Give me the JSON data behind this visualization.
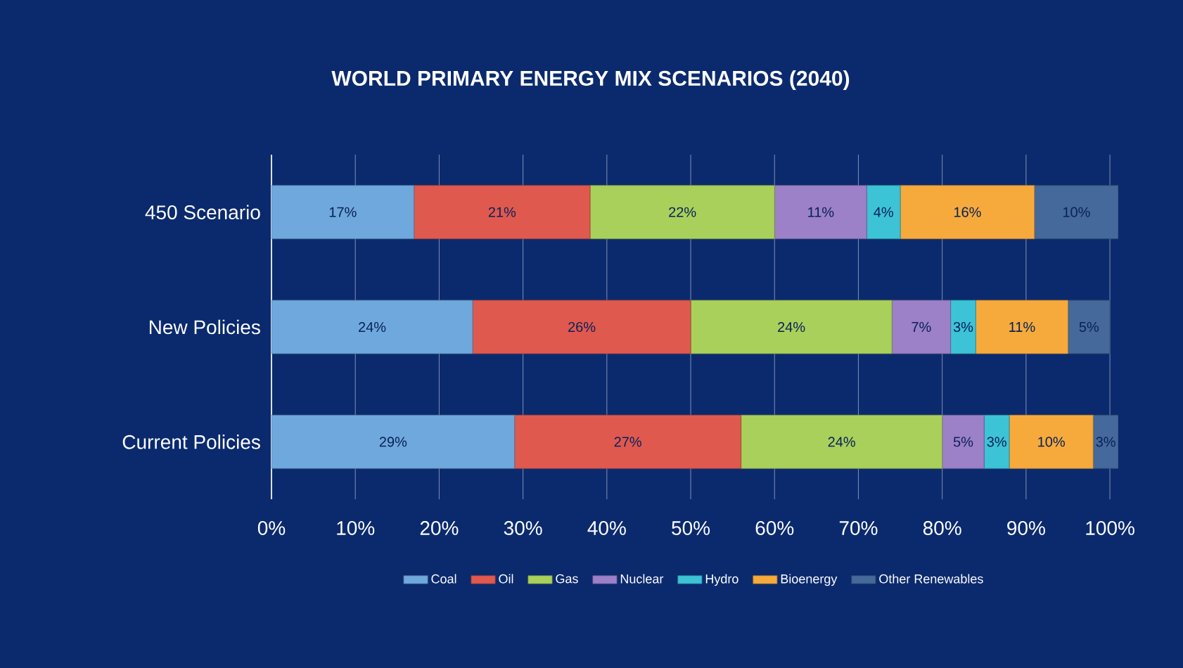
{
  "chart_data": {
    "type": "bar",
    "orientation": "horizontal",
    "stacked": true,
    "title": "WORLD PRIMARY ENERGY MIX SCENARIOS (2040)",
    "categories": [
      "450 Scenario",
      "New Policies",
      "Current Policies"
    ],
    "series": [
      {
        "name": "Coal",
        "color": "#6fa8dc",
        "values": [
          17,
          24,
          29
        ],
        "value_labels": [
          "17%",
          "24%",
          "29%"
        ]
      },
      {
        "name": "Oil",
        "color": "#e0594f",
        "values": [
          21,
          26,
          27
        ],
        "value_labels": [
          "21%",
          "26%",
          "27%"
        ]
      },
      {
        "name": "Gas",
        "color": "#a9d05b",
        "values": [
          22,
          24,
          24
        ],
        "value_labels": [
          "22%",
          "24%",
          "24%"
        ]
      },
      {
        "name": "Nuclear",
        "color": "#9c80c8",
        "values": [
          11,
          7,
          5
        ],
        "value_labels": [
          "11%",
          "7%",
          "5%"
        ]
      },
      {
        "name": "Hydro",
        "color": "#3cc3d6",
        "values": [
          4,
          3,
          3
        ],
        "value_labels": [
          "4%",
          "3%",
          "3%"
        ]
      },
      {
        "name": "Bioenergy",
        "color": "#f7aa3c",
        "values": [
          16,
          11,
          10
        ],
        "value_labels": [
          "16%",
          "11%",
          "10%"
        ]
      },
      {
        "name": "Other Renewables",
        "color": "#44699a",
        "values": [
          10,
          5,
          3
        ],
        "value_labels": [
          "10%",
          "5%",
          "3%"
        ]
      }
    ],
    "xlim": [
      0,
      101
    ],
    "xticks": [
      {
        "value": 0,
        "label": "0%"
      },
      {
        "value": 10,
        "label": "10%"
      },
      {
        "value": 20,
        "label": "20%"
      },
      {
        "value": 30,
        "label": "30%"
      },
      {
        "value": 40,
        "label": "40%"
      },
      {
        "value": 50,
        "label": "50%"
      },
      {
        "value": 60,
        "label": "60%"
      },
      {
        "value": 70,
        "label": "70%"
      },
      {
        "value": 80,
        "label": "80%"
      },
      {
        "value": 90,
        "label": "90%"
      },
      {
        "value": 100,
        "label": "100%"
      }
    ],
    "grid": "x",
    "legend": "bottom"
  }
}
